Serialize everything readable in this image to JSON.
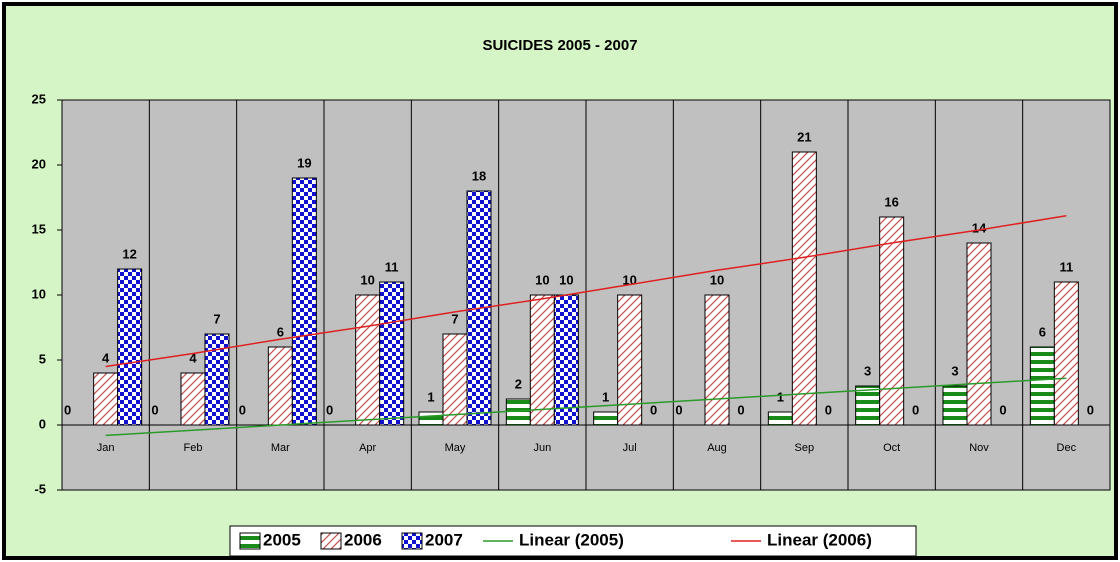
{
  "chart_data": {
    "type": "bar",
    "title": "SUICIDES 2005 - 2007",
    "categories": [
      "Jan",
      "Feb",
      "Mar",
      "Apr",
      "May",
      "Jun",
      "Jul",
      "Aug",
      "Sep",
      "Oct",
      "Nov",
      "Dec"
    ],
    "series": [
      {
        "name": "2005",
        "color": "#1a8a1a",
        "pattern": "stripes",
        "values": [
          0,
          0,
          0,
          0,
          1,
          2,
          1,
          0,
          1,
          3,
          3,
          6
        ]
      },
      {
        "name": "2006",
        "color": "#c05050",
        "pattern": "hatch",
        "values": [
          4,
          4,
          6,
          10,
          7,
          10,
          10,
          10,
          21,
          16,
          14,
          11
        ]
      },
      {
        "name": "2007",
        "color": "#1010d0",
        "pattern": "checker",
        "values": [
          12,
          7,
          19,
          11,
          18,
          10,
          0,
          0,
          0,
          0,
          0,
          0
        ]
      }
    ],
    "trendlines": [
      {
        "name": "Linear (2005)",
        "color": "#2a9a2a",
        "values": [
          -0.8,
          -0.4,
          0.0,
          0.4,
          0.8,
          1.2,
          1.6,
          2.0,
          2.4,
          2.8,
          3.2,
          3.6
        ]
      },
      {
        "name": "Linear (2006)",
        "color": "#e02020",
        "values": [
          4.5,
          5.5,
          6.6,
          7.6,
          8.7,
          9.7,
          10.8,
          11.9,
          12.9,
          14.0,
          15.0,
          16.1
        ]
      }
    ],
    "ylim": [
      -5,
      25
    ],
    "yticks": [
      -5,
      0,
      5,
      10,
      15,
      20,
      25
    ],
    "grid": "vertical",
    "legend": "bottom"
  }
}
